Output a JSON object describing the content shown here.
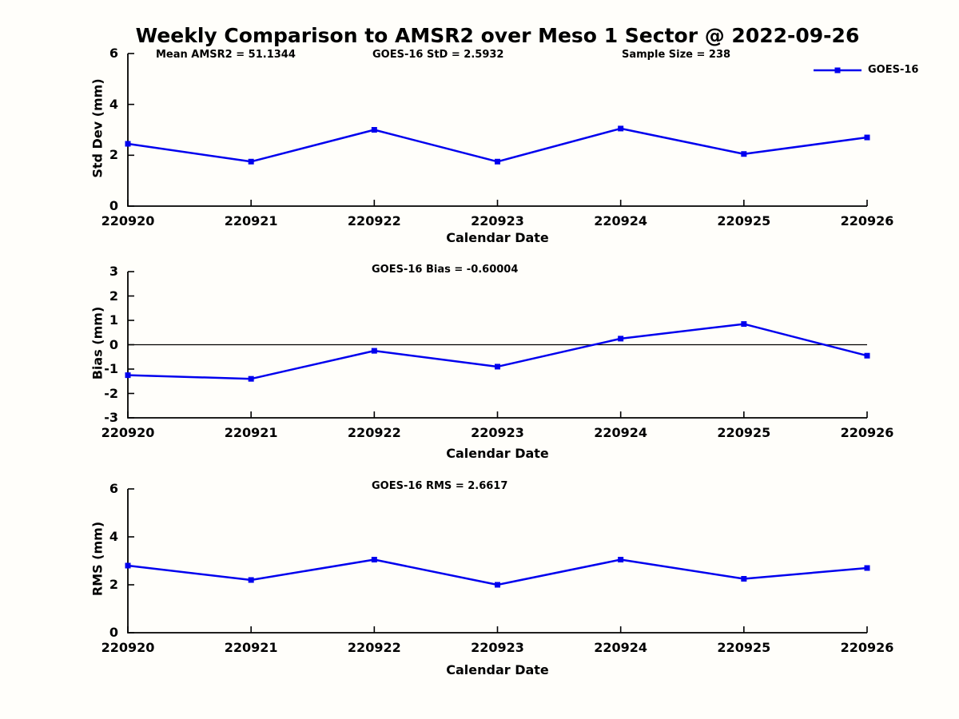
{
  "page": {
    "title": "Weekly Comparison to AMSR2 over Meso 1 Sector @ 2022-09-26"
  },
  "legend": {
    "label": "GOES-16",
    "position": "top-right"
  },
  "colors": {
    "series": "#0000ee",
    "axis": "#000000",
    "background": "#fffefa"
  },
  "chart_data": [
    {
      "type": "line",
      "name": "std-dev-vs-date",
      "annotations": [
        "Mean AMSR2 = 51.1344",
        "GOES-16 StD = 2.5932",
        "Sample Size = 238"
      ],
      "categories": [
        "220920",
        "220921",
        "220922",
        "220923",
        "220924",
        "220925",
        "220926"
      ],
      "series": [
        {
          "name": "GOES-16",
          "values": [
            2.45,
            1.75,
            3.0,
            1.75,
            3.05,
            2.05,
            2.7
          ]
        }
      ],
      "xlabel": "Calendar Date",
      "ylabel": "Std Dev (mm)",
      "ylim": [
        0,
        6
      ],
      "yticks": [
        0,
        2,
        4,
        6
      ],
      "grid": false,
      "zero_line": false,
      "legend": true
    },
    {
      "type": "line",
      "name": "bias-vs-date",
      "annotations": [
        "GOES-16 Bias  = -0.60004"
      ],
      "categories": [
        "220920",
        "220921",
        "220922",
        "220923",
        "220924",
        "220925",
        "220926"
      ],
      "series": [
        {
          "name": "GOES-16",
          "values": [
            -1.25,
            -1.4,
            -0.25,
            -0.9,
            0.25,
            0.85,
            -0.45
          ]
        }
      ],
      "xlabel": "Calendar Date",
      "ylabel": "Bias (mm)",
      "ylim": [
        -3,
        3
      ],
      "yticks": [
        -3,
        -2,
        -1,
        0,
        1,
        2,
        3
      ],
      "grid": false,
      "zero_line": true,
      "legend": false
    },
    {
      "type": "line",
      "name": "rms-vs-date",
      "annotations": [
        "GOES-16 RMS = 2.6617"
      ],
      "categories": [
        "220920",
        "220921",
        "220922",
        "220923",
        "220924",
        "220925",
        "220926"
      ],
      "series": [
        {
          "name": "GOES-16",
          "values": [
            2.8,
            2.2,
            3.05,
            2.0,
            3.05,
            2.25,
            2.7
          ]
        }
      ],
      "xlabel": "Calendar Date",
      "ylabel": "RMS (mm)",
      "ylim": [
        0,
        6
      ],
      "yticks": [
        0,
        2,
        4,
        6
      ],
      "grid": false,
      "zero_line": false,
      "legend": true
    }
  ]
}
